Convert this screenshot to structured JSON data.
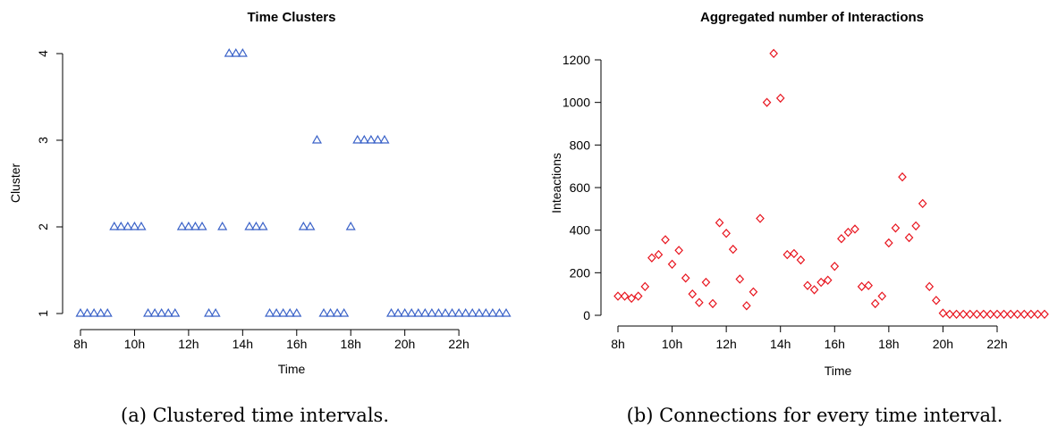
{
  "chart_data": [
    {
      "type": "scatter",
      "title": "Time Clusters",
      "xlabel": "Time",
      "ylabel": "Cluster",
      "marker": "triangle",
      "color": "#3a62c8",
      "xlim": [
        8,
        23.75
      ],
      "ylim": [
        1,
        4
      ],
      "x_ticks": [
        {
          "value": 8,
          "label": "8h"
        },
        {
          "value": 10,
          "label": "10h"
        },
        {
          "value": 12,
          "label": "12h"
        },
        {
          "value": 14,
          "label": "14h"
        },
        {
          "value": 16,
          "label": "16h"
        },
        {
          "value": 18,
          "label": "18h"
        },
        {
          "value": 20,
          "label": "20h"
        },
        {
          "value": 22,
          "label": "22h"
        }
      ],
      "y_ticks": [
        {
          "value": 1,
          "label": "1"
        },
        {
          "value": 2,
          "label": "2"
        },
        {
          "value": 3,
          "label": "3"
        },
        {
          "value": 4,
          "label": "4"
        }
      ],
      "x": [
        8,
        8.25,
        8.5,
        8.75,
        9,
        9.25,
        9.5,
        9.75,
        10,
        10.25,
        10.5,
        10.75,
        11,
        11.25,
        11.5,
        11.75,
        12,
        12.25,
        12.5,
        12.75,
        13,
        13.25,
        13.5,
        13.75,
        14,
        14.25,
        14.5,
        14.75,
        15,
        15.25,
        15.5,
        15.75,
        16,
        16.25,
        16.5,
        16.75,
        17,
        17.25,
        17.5,
        17.75,
        18,
        18.25,
        18.5,
        18.75,
        19,
        19.25,
        19.5,
        19.75,
        20,
        20.25,
        20.5,
        20.75,
        21,
        21.25,
        21.5,
        21.75,
        22,
        22.25,
        22.5,
        22.75,
        23,
        23.25,
        23.5,
        23.75
      ],
      "y": [
        1,
        1,
        1,
        1,
        1,
        2,
        2,
        2,
        2,
        2,
        1,
        1,
        1,
        1,
        1,
        2,
        2,
        2,
        2,
        1,
        1,
        2,
        4,
        4,
        4,
        2,
        2,
        2,
        1,
        1,
        1,
        1,
        1,
        2,
        2,
        3,
        1,
        1,
        1,
        1,
        2,
        3,
        3,
        3,
        3,
        3,
        1,
        1,
        1,
        1,
        1,
        1,
        1,
        1,
        1,
        1,
        1,
        1,
        1,
        1,
        1,
        1,
        1,
        1
      ]
    },
    {
      "type": "scatter",
      "title": "Aggregated number of Interactions",
      "xlabel": "Time",
      "ylabel": "Inteactions",
      "marker": "diamond",
      "color": "#e8141e",
      "xlim": [
        8,
        23.75
      ],
      "ylim": [
        0,
        1200
      ],
      "x_ticks": [
        {
          "value": 8,
          "label": "8h"
        },
        {
          "value": 10,
          "label": "10h"
        },
        {
          "value": 12,
          "label": "12h"
        },
        {
          "value": 14,
          "label": "14h"
        },
        {
          "value": 16,
          "label": "16h"
        },
        {
          "value": 18,
          "label": "18h"
        },
        {
          "value": 20,
          "label": "20h"
        },
        {
          "value": 22,
          "label": "22h"
        }
      ],
      "y_ticks": [
        {
          "value": 0,
          "label": "0"
        },
        {
          "value": 200,
          "label": "200"
        },
        {
          "value": 400,
          "label": "400"
        },
        {
          "value": 600,
          "label": "600"
        },
        {
          "value": 800,
          "label": "800"
        },
        {
          "value": 1000,
          "label": "1000"
        },
        {
          "value": 1200,
          "label": "1200"
        }
      ],
      "x": [
        8,
        8.25,
        8.5,
        8.75,
        9,
        9.25,
        9.5,
        9.75,
        10,
        10.25,
        10.5,
        10.75,
        11,
        11.25,
        11.5,
        11.75,
        12,
        12.25,
        12.5,
        12.75,
        13,
        13.25,
        13.5,
        13.75,
        14,
        14.25,
        14.5,
        14.75,
        15,
        15.25,
        15.5,
        15.75,
        16,
        16.25,
        16.5,
        16.75,
        17,
        17.25,
        17.5,
        17.75,
        18,
        18.25,
        18.5,
        18.75,
        19,
        19.25,
        19.5,
        19.75,
        20,
        20.25,
        20.5,
        20.75,
        21,
        21.25,
        21.5,
        21.75,
        22,
        22.25,
        22.5,
        22.75,
        23,
        23.25,
        23.5,
        23.75
      ],
      "y": [
        90,
        90,
        80,
        90,
        135,
        270,
        285,
        355,
        240,
        305,
        175,
        100,
        60,
        155,
        55,
        435,
        385,
        310,
        170,
        45,
        110,
        455,
        1000,
        1230,
        1020,
        285,
        290,
        260,
        140,
        120,
        155,
        165,
        230,
        360,
        390,
        405,
        135,
        140,
        55,
        90,
        340,
        410,
        650,
        365,
        420,
        525,
        135,
        70,
        10,
        5,
        5,
        5,
        5,
        5,
        5,
        5,
        5,
        5,
        5,
        5,
        5,
        5,
        5,
        5
      ]
    }
  ],
  "captions": {
    "left": "(a) Clustered time intervals.",
    "right": "(b) Connections for every time interval."
  }
}
